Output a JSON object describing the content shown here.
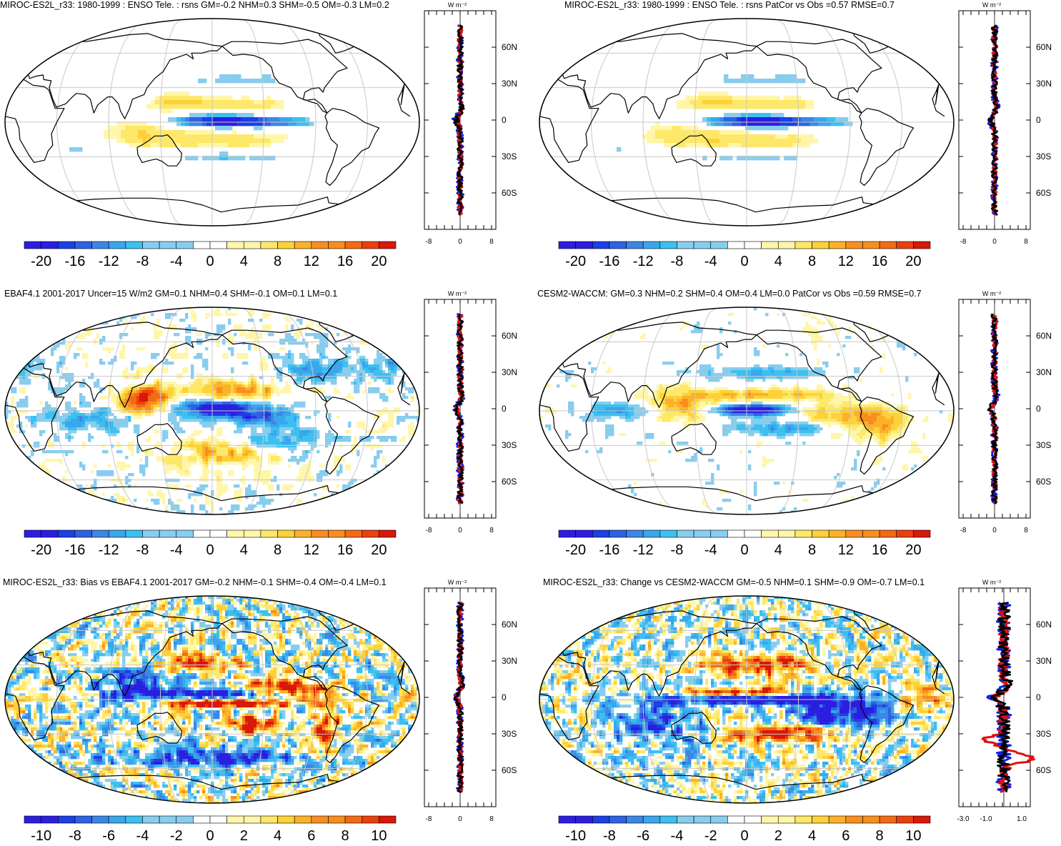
{
  "colors": {
    "blue_scale": [
      "#2b1ee0",
      "#1c3fe6",
      "#2f62e2",
      "#3c86e6",
      "#3aa6ec",
      "#3cc0f0",
      "#88cdee"
    ],
    "red_scale": [
      "#fff6aa",
      "#fde86a",
      "#fdd13a",
      "#fbb22a",
      "#f88e1f",
      "#f46a14",
      "#ea400e",
      "#d81808"
    ],
    "zonal_model": "#e01010",
    "zonal_obs": "#1020e0",
    "zonal_diff": "#000000",
    "grid": "#c8c8c8",
    "land_outline": "#000000"
  },
  "panels": [
    {
      "title": "MIROC-ES2L_r33: 1980-1999 : ENSO Tele. : rsns GM=-0.2 NHM=0.3 SHM=-0.5 OM=-0.3 LM=0.2",
      "colorbar_labels": [
        "-20",
        "-16",
        "-12",
        "-8",
        "-4",
        "0",
        "4",
        "8",
        "12",
        "16",
        "20"
      ],
      "zonal_unit": "W m⁻²",
      "zonal_lat_labels": [
        "60N",
        "30N",
        "0",
        "30S",
        "60S"
      ],
      "zonal_x_labels": [
        "-8",
        "0",
        "8"
      ],
      "field": {
        "intensity": 1.0,
        "kind": "enso"
      }
    },
    {
      "title": "MIROC-ES2L_r33: 1980-1999 : ENSO Tele. : rsns PatCor vs Obs =0.57 RMSE=0.7",
      "colorbar_labels": [
        "-20",
        "-16",
        "-12",
        "-8",
        "-4",
        "0",
        "4",
        "8",
        "12",
        "16",
        "20"
      ],
      "zonal_unit": "W m⁻²",
      "zonal_lat_labels": [
        "60N",
        "30N",
        "0",
        "30S",
        "60S"
      ],
      "zonal_x_labels": [
        "-8",
        "0",
        "8"
      ],
      "field": {
        "intensity": 1.0,
        "kind": "enso"
      }
    },
    {
      "title": "EBAF4.1 2001-2017 Uncer=15 W/m2 GM=0.1 NHM=0.4 SHM=-0.1 OM=0.1 LM=0.1",
      "colorbar_labels": [
        "-20",
        "-16",
        "-12",
        "-8",
        "-4",
        "0",
        "4",
        "8",
        "12",
        "16",
        "20"
      ],
      "zonal_unit": "W m⁻²",
      "zonal_lat_labels": [
        "60N",
        "30N",
        "0",
        "30S",
        "60S"
      ],
      "zonal_x_labels": [
        "-8",
        "0",
        "8"
      ],
      "field": {
        "intensity": 1.2,
        "kind": "obs"
      }
    },
    {
      "title": "CESM2-WACCM: GM=0.3 NHM=0.2 SHM=0.4 OM=0.4 LM=0.0 PatCor vs Obs =0.59 RMSE=0.7",
      "colorbar_labels": [
        "-20",
        "-16",
        "-12",
        "-8",
        "-4",
        "0",
        "4",
        "8",
        "12",
        "16",
        "20"
      ],
      "zonal_unit": "W m⁻²",
      "zonal_lat_labels": [
        "60N",
        "30N",
        "0",
        "30S",
        "60S"
      ],
      "zonal_x_labels": [
        "-8",
        "0",
        "8"
      ],
      "field": {
        "intensity": 1.2,
        "kind": "cesm"
      }
    },
    {
      "title": "MIROC-ES2L_r33: Bias vs EBAF4.1 2001-2017 GM=-0.2 NHM=-0.1 SHM=-0.4 OM=-0.4 LM=0.1",
      "colorbar_labels": [
        "-10",
        "-8",
        "-6",
        "-4",
        "-2",
        "0",
        "2",
        "4",
        "6",
        "8",
        "10"
      ],
      "zonal_unit": "W m⁻²",
      "zonal_lat_labels": [
        "60N",
        "30N",
        "0",
        "30S",
        "60S"
      ],
      "zonal_x_labels": [
        "-8",
        "0",
        "8"
      ],
      "field": {
        "intensity": 1.6,
        "kind": "bias"
      }
    },
    {
      "title": "MIROC-ES2L_r33: Change vs CESM2-WACCM GM=-0.5 NHM=0.1 SHM=-0.9 OM=-0.7 LM=0.1",
      "colorbar_labels": [
        "-10",
        "-8",
        "-6",
        "-4",
        "-2",
        "0",
        "2",
        "4",
        "6",
        "8",
        "10"
      ],
      "zonal_unit": "W m⁻²",
      "zonal_lat_labels": [
        "60N",
        "30N",
        "0",
        "30S",
        "60S"
      ],
      "zonal_x_labels": [
        "-3.0",
        "-1.0",
        "1.0"
      ],
      "field": {
        "intensity": 1.6,
        "kind": "change"
      }
    }
  ]
}
